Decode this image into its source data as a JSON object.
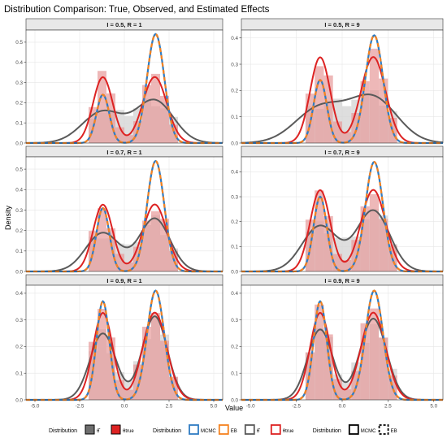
{
  "title": "Distribution Comparison: True, Observed, and Estimated Effects",
  "xlabel": "Value",
  "ylabel": "Density",
  "colors": {
    "true": "#dd2222",
    "observed": "#5a5a5a",
    "mcmc": "#2f7cc3",
    "eb": "#f5821f",
    "hist_true": "#e79a9a",
    "hist_obs": "#d6d6d6",
    "strip": "#e8e8e8",
    "grid": "#e6e6e6"
  },
  "legend": {
    "groups": [
      {
        "title": "Distribution",
        "items": [
          {
            "label": "θ̂",
            "icon": "gray-filled-box",
            "color": "#6e6e6e"
          },
          {
            "label": "θtrue",
            "icon": "red-filled-box",
            "color": "#dd2222"
          }
        ]
      },
      {
        "title": "Distribution",
        "items": [
          {
            "label": "MCMC",
            "icon": "blue-line-box",
            "color": "#2f7cc3"
          },
          {
            "label": "EB",
            "icon": "orange-line-box",
            "color": "#f5821f"
          },
          {
            "label": "θ̂",
            "icon": "gray-line-box",
            "color": "#5a5a5a"
          },
          {
            "label": "θtrue",
            "icon": "red-line-box",
            "color": "#dd2222"
          }
        ]
      },
      {
        "title": "Distribution",
        "items": [
          {
            "label": "MCMC",
            "icon": "solid-line-box",
            "color": "#000000"
          },
          {
            "label": "EB",
            "icon": "dashed-line-box",
            "color": "#000000"
          }
        ]
      }
    ]
  },
  "chart_data": {
    "type": "area",
    "xlim": [
      -5.5,
      5.5
    ],
    "x_ticks": [
      -5.0,
      -2.5,
      0.0,
      2.5,
      5.0
    ],
    "x_tick_labels": [
      "-5.0",
      "-2.5",
      "0.0",
      "2.5",
      "5.0"
    ],
    "series_names": [
      "MCMC",
      "EB",
      "θ̂",
      "θtrue"
    ],
    "panels": [
      {
        "label": "I = 0.5, R = 1",
        "ylim": [
          0,
          0.56
        ],
        "y_ticks": [
          0,
          0.1,
          0.2,
          0.3,
          0.4,
          0.5
        ],
        "mcmc_peaks": [
          0.24,
          0.54
        ],
        "observed": {
          "components": [
            [
              0.45,
              -1.2,
              1.15
            ],
            [
              0.55,
              1.7,
              1.05
            ]
          ]
        }
      },
      {
        "label": "I = 0.5, R = 9",
        "ylim": [
          0,
          0.43
        ],
        "y_ticks": [
          0,
          0.1,
          0.2,
          0.3,
          0.4
        ],
        "mcmc_peaks": [
          0.24,
          0.41
        ],
        "observed": {
          "components": [
            [
              0.45,
              -1.2,
              1.35
            ],
            [
              0.55,
              1.7,
              1.3
            ]
          ]
        }
      },
      {
        "label": "I = 0.7, R = 1",
        "ylim": [
          0,
          0.56
        ],
        "y_ticks": [
          0,
          0.1,
          0.2,
          0.3,
          0.4,
          0.5
        ],
        "mcmc_peaks": [
          0.31,
          0.54
        ],
        "observed": {
          "components": [
            [
              0.45,
              -1.2,
              0.95
            ],
            [
              0.55,
              1.7,
              0.85
            ]
          ]
        }
      },
      {
        "label": "I = 0.7, R = 9",
        "ylim": [
          0,
          0.46
        ],
        "y_ticks": [
          0,
          0.1,
          0.2,
          0.3,
          0.4
        ],
        "mcmc_peaks": [
          0.3,
          0.44
        ],
        "observed": {
          "components": [
            [
              0.45,
              -1.2,
              0.98
            ],
            [
              0.55,
              1.7,
              0.9
            ]
          ]
        }
      },
      {
        "label": "I = 0.9, R = 1",
        "ylim": [
          0,
          0.43
        ],
        "y_ticks": [
          0,
          0.1,
          0.2,
          0.3,
          0.4
        ],
        "mcmc_peaks": [
          0.37,
          0.41
        ],
        "observed": {
          "components": [
            [
              0.45,
              -1.2,
              0.72
            ],
            [
              0.55,
              1.7,
              0.7
            ]
          ]
        }
      },
      {
        "label": "I = 0.9, R = 9",
        "ylim": [
          0,
          0.43
        ],
        "y_ticks": [
          0,
          0.1,
          0.2,
          0.3,
          0.4
        ],
        "mcmc_peaks": [
          0.37,
          0.41
        ],
        "observed": {
          "components": [
            [
              0.45,
              -1.2,
              0.68
            ],
            [
              0.55,
              1.7,
              0.72
            ]
          ]
        }
      }
    ],
    "true_components": [
      [
        0.45,
        -1.2,
        0.55
      ],
      [
        0.55,
        1.7,
        0.67
      ]
    ],
    "hist_bins": [
      -2.0,
      -1.5,
      -1.0,
      -0.5,
      0.0,
      0.5,
      1.0,
      1.5,
      2.0,
      2.5,
      3.0
    ]
  }
}
